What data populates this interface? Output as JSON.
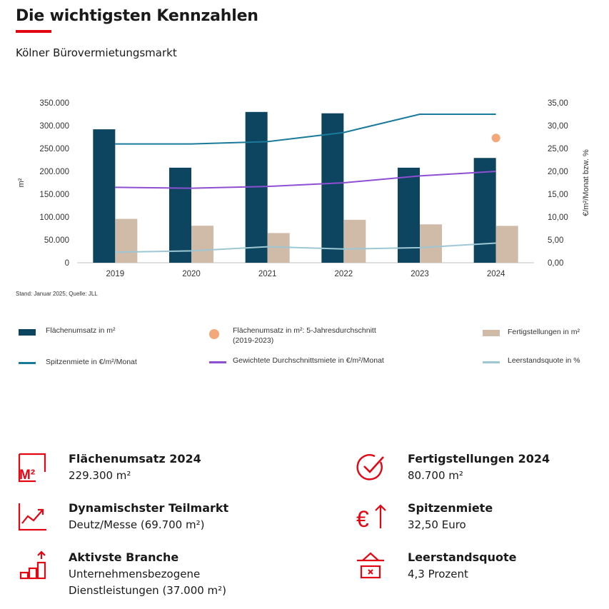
{
  "header": {
    "title": "Die wichtigsten Kennzahlen",
    "subtitle": "Kölner Bürovermietungsmarkt",
    "accent_color": "#e30613"
  },
  "source_note": "Stand: Januar 2025; Quelle: JLL",
  "chart_data": {
    "type": "bar",
    "categories": [
      "2019",
      "2020",
      "2021",
      "2022",
      "2023",
      "2024"
    ],
    "ylabel_left": "m²",
    "ylabel_right": "€/m²/Monat bzw. %",
    "ylim_left": [
      0,
      350000
    ],
    "ylim_right": [
      0,
      35
    ],
    "left_ticks": [
      "0",
      "50.000",
      "100.000",
      "150.000",
      "200.000",
      "250.000",
      "300.000",
      "350.000"
    ],
    "right_ticks": [
      "0,00",
      "5,00",
      "10,00",
      "15,00",
      "20,00",
      "25,00",
      "30,00",
      "35,00"
    ],
    "series": [
      {
        "name": "Flächenumsatz in m²",
        "kind": "bar",
        "axis": "left",
        "color": "#0d4560",
        "values": [
          292000,
          208000,
          330000,
          327000,
          208000,
          229300
        ]
      },
      {
        "name": "Fertigstellungen in m²",
        "kind": "bar",
        "axis": "left",
        "color": "#d0bba9",
        "values": [
          96000,
          81000,
          65000,
          94000,
          84000,
          80700
        ]
      },
      {
        "name": "Flächenumsatz in m²: 5-Jahresdurchschnitt (2019-2023)",
        "kind": "point",
        "axis": "left",
        "color": "#f4a77a",
        "x": "2024",
        "value": 273000
      },
      {
        "name": "Spitzenmiete in €/m²/Monat",
        "kind": "line",
        "axis": "right",
        "color": "#1a7a9a",
        "values": [
          26.0,
          26.0,
          26.5,
          28.5,
          32.5,
          32.5
        ]
      },
      {
        "name": "Gewichtete Durchschnittsmiete in €/m²/Monat",
        "kind": "line",
        "axis": "right",
        "color": "#8f4fd2",
        "values": [
          16.5,
          16.3,
          16.7,
          17.5,
          19.0,
          20.0
        ]
      },
      {
        "name": "Leerstandsquote in %",
        "kind": "line",
        "axis": "right",
        "color": "#9ec7d4",
        "values": [
          2.3,
          2.6,
          3.5,
          3.0,
          3.3,
          4.3
        ]
      }
    ]
  },
  "legend": {
    "items": [
      {
        "label": "Flächenumsatz in m²",
        "swatch": "rect",
        "color": "#0d4560"
      },
      {
        "label": "Flächenumsatz in m²: 5-Jahresdurchschnitt",
        "label2": "(2019-2023)",
        "swatch": "dot",
        "color": "#f4a77a"
      },
      {
        "label": "Fertigstellungen in m²",
        "swatch": "rect",
        "color": "#d0bba9"
      },
      {
        "label": "Spitzenmiete in €/m²/Monat",
        "swatch": "line",
        "color": "#1a7a9a"
      },
      {
        "label": "Gewichtete Durchschnittsmiete in €/m²/Monat",
        "swatch": "line",
        "color": "#8f4fd2"
      },
      {
        "label": "Leerstandsquote in %",
        "swatch": "line",
        "color": "#9ec7d4"
      }
    ]
  },
  "kpis": [
    {
      "icon": "square-meter-icon",
      "label": "Flächenumsatz 2024",
      "value": "229.300 m²"
    },
    {
      "icon": "checkmark-circle-icon",
      "label": "Fertigstellungen 2024",
      "value": "80.700 m²"
    },
    {
      "icon": "trend-up-icon",
      "label": "Dynamischster Teilmarkt",
      "value": "Deutz/Messe (69.700 m²)"
    },
    {
      "icon": "euro-up-icon",
      "label": "Spitzenmiete",
      "value": "32,50 Euro"
    },
    {
      "icon": "bar-steps-icon",
      "label": "Aktivste Branche",
      "value": "Unternehmensbezogene",
      "value2": "Dienstleistungen (37.000 m²)"
    },
    {
      "icon": "vacancy-sign-icon",
      "label": "Leerstandsquote",
      "value": "4,3 Prozent"
    }
  ],
  "icon_color": "#e30613"
}
